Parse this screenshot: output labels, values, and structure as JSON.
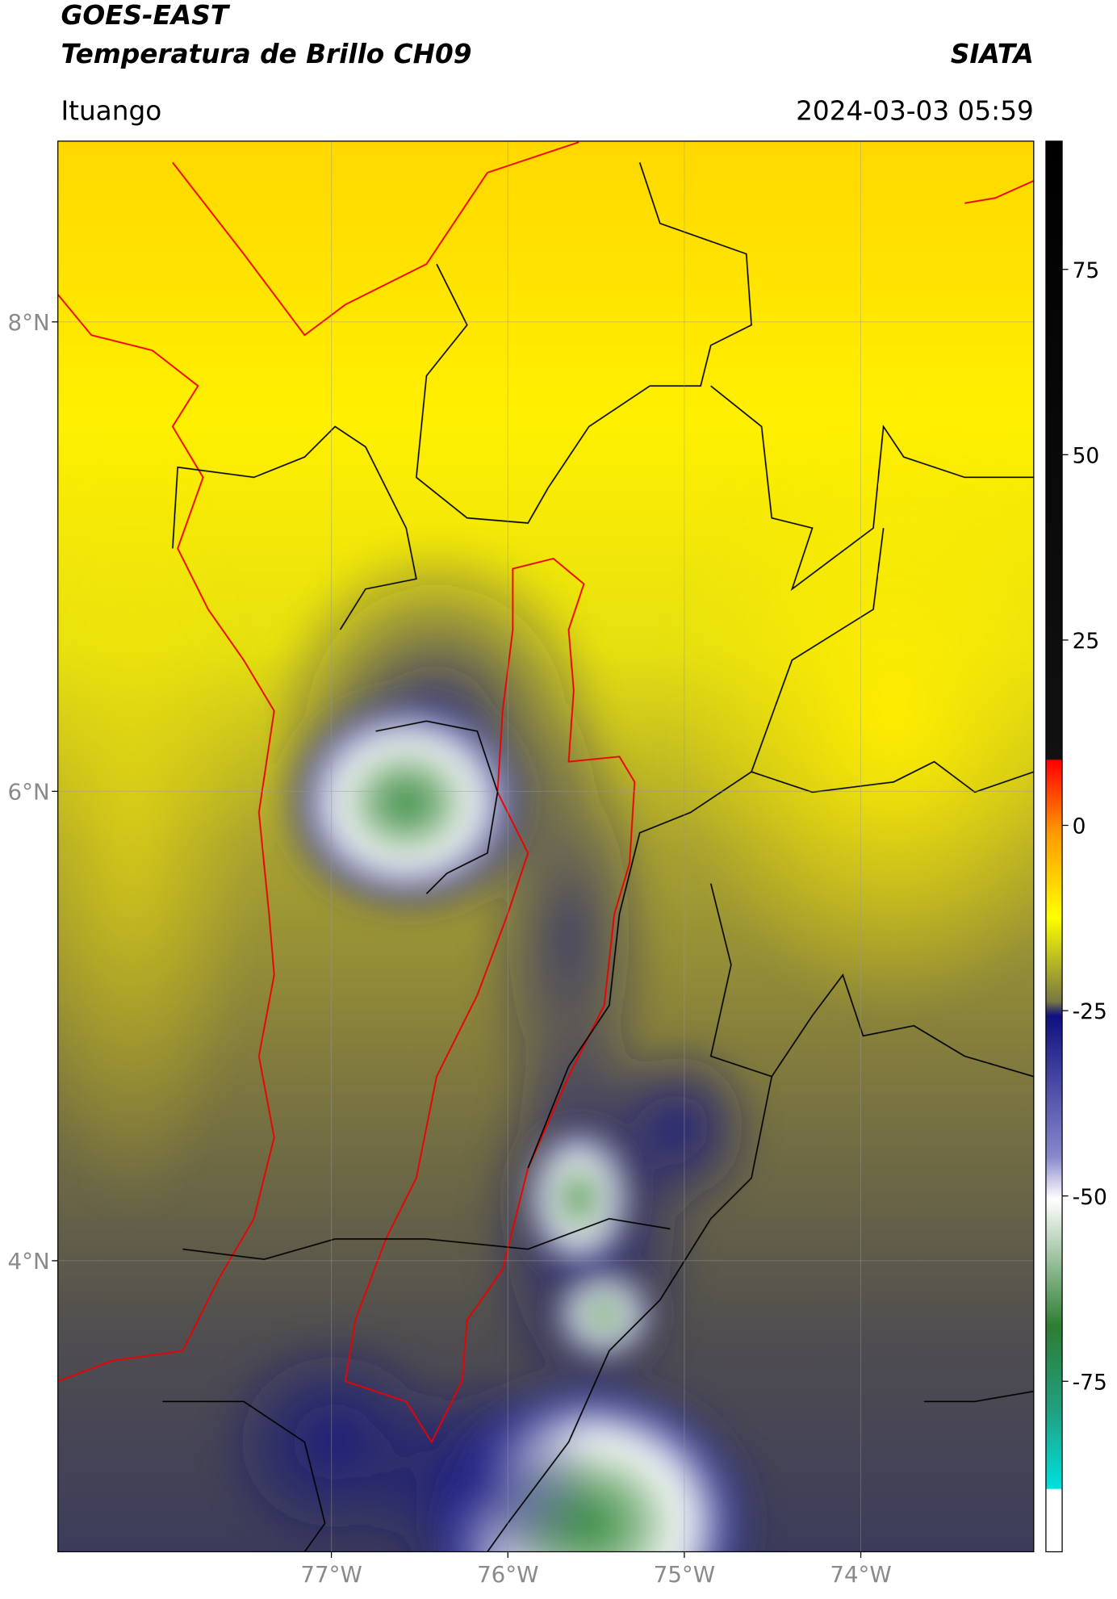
{
  "header": {
    "satellite": "GOES-EAST",
    "product": "Temperatura de Brillo CH09",
    "agency": "SIATA",
    "region": "Ituango",
    "datetime": "2024-03-03 05:59"
  },
  "map": {
    "xlim": [
      -78.55,
      -73.02
    ],
    "ylim": [
      2.76,
      8.77
    ],
    "xticks": [
      {
        "value": -77,
        "label": "77°W"
      },
      {
        "value": -76,
        "label": "76°W"
      },
      {
        "value": -75,
        "label": "75°W"
      },
      {
        "value": -74,
        "label": "74°W"
      }
    ],
    "yticks": [
      {
        "value": 8,
        "label": "8°N"
      },
      {
        "value": 6,
        "label": "6°N"
      },
      {
        "value": 4,
        "label": "4°N"
      }
    ],
    "grid": true
  },
  "colorbar": {
    "lim": [
      -98,
      92.3
    ],
    "ticks": [
      75,
      50,
      25,
      0,
      -25,
      -50,
      -75
    ]
  }
}
